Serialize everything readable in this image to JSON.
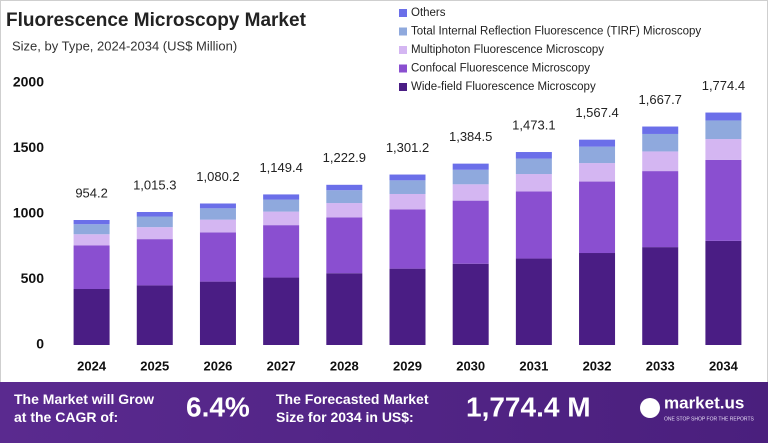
{
  "chart_data": {
    "type": "stacked-bar",
    "title": "Fluorescence Microscopy Market",
    "subtitle": "Size, by Type, 2024-2034 (US$ Million)",
    "categories": [
      "2024",
      "2025",
      "2026",
      "2027",
      "2028",
      "2029",
      "2030",
      "2031",
      "2032",
      "2033",
      "2034"
    ],
    "series": [
      {
        "name": "Wide-field Fluorescence Microscopy",
        "color": "#4a1d84",
        "values": [
          427.5,
          454.9,
          483.9,
          514.9,
          547.9,
          582.9,
          620.3,
          659.9,
          702.2,
          747.1,
          794.9
        ]
      },
      {
        "name": "Confocal Fluorescence Microscopy",
        "color": "#8a4fd0",
        "values": [
          332.1,
          353.3,
          375.9,
          400.0,
          425.6,
          452.8,
          481.8,
          512.6,
          545.5,
          580.4,
          617.5
        ]
      },
      {
        "name": "Multiphoton Fluorescence Microscopy",
        "color": "#d4b6f2",
        "values": [
          85.9,
          91.4,
          97.2,
          103.4,
          110.1,
          117.1,
          124.6,
          132.6,
          141.1,
          150.1,
          159.7
        ]
      },
      {
        "name": "Total Internal Reflection Fluorescence (TIRF) Microscopy",
        "color": "#8fa9dd",
        "values": [
          76.3,
          81.2,
          86.4,
          92.0,
          97.8,
          104.1,
          110.8,
          117.8,
          125.4,
          133.4,
          142.0
        ]
      },
      {
        "name": "Others",
        "color": "#6b6fe9",
        "values": [
          32.4,
          34.5,
          36.8,
          39.1,
          41.5,
          44.3,
          47.0,
          50.2,
          53.2,
          56.7,
          60.3
        ]
      }
    ],
    "totals": [
      954.2,
      1015.3,
      1080.2,
      1149.4,
      1222.9,
      1301.2,
      1384.5,
      1473.1,
      1567.4,
      1667.7,
      1774.4
    ],
    "total_labels": [
      "954.2",
      "1,015.3",
      "1,080.2",
      "1,149.4",
      "1,222.9",
      "1,301.2",
      "1,384.5",
      "1,473.1",
      "1,567.4",
      "1,667.7",
      "1,774.4"
    ],
    "ylim": [
      0,
      2000
    ],
    "yticks": [
      0,
      500,
      1000,
      1500,
      2000
    ],
    "grid": false
  },
  "footer": {
    "growth_text": "The Market will Grow at the CAGR of:",
    "cagr": "6.4%",
    "forecast_text": "The Forecasted Market Size for 2034 in US$:",
    "forecast_value": "1,774.4 M",
    "brand": "market.us",
    "brand_tagline": "ONE STOP SHOP FOR THE REPORTS"
  }
}
